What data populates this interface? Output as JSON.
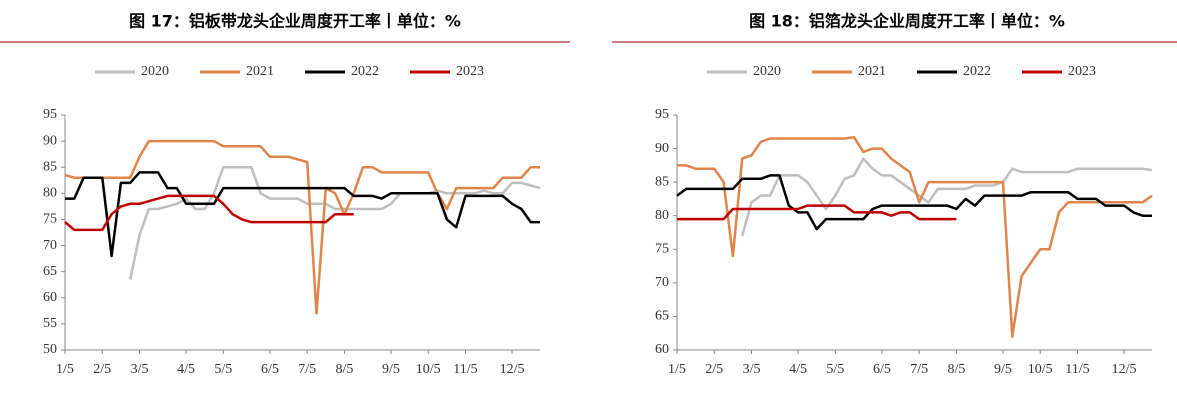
{
  "chart_data": [
    {
      "type": "line",
      "title": "图 17：铝板带龙头企业周度开工率丨单位：%",
      "categories": [
        "1/5",
        null,
        null,
        null,
        "2/5",
        null,
        null,
        null,
        "3/5",
        null,
        null,
        null,
        null,
        "4/5",
        null,
        null,
        null,
        "5/5",
        null,
        null,
        null,
        null,
        "6/5",
        null,
        null,
        null,
        "7/5",
        null,
        null,
        null,
        "8/5",
        null,
        null,
        null,
        null,
        "9/5",
        null,
        null,
        null,
        "10/5",
        null,
        null,
        null,
        "11/5",
        null,
        null,
        null,
        null,
        "12/5",
        null,
        null,
        null
      ],
      "ylim": [
        50,
        95
      ],
      "yticks": [
        50,
        55,
        60,
        65,
        70,
        75,
        80,
        85,
        90,
        95
      ],
      "series": [
        {
          "name": "2020",
          "color": "#bfbfbf",
          "values": [
            null,
            null,
            null,
            null,
            null,
            null,
            null,
            63.5,
            72,
            77,
            77,
            77.5,
            78,
            79,
            77,
            77,
            80,
            85,
            85,
            85,
            85,
            80,
            79,
            79,
            79,
            79,
            78,
            78,
            78,
            77,
            77,
            77,
            77,
            77,
            77,
            78,
            80,
            80,
            80,
            80,
            80.5,
            80,
            80,
            80,
            80,
            80.5,
            80,
            80,
            82,
            82,
            81.5,
            81
          ]
        },
        {
          "name": "2021",
          "color": "#e0854a",
          "values": [
            83.5,
            83,
            83,
            83,
            83,
            83,
            83,
            83,
            87,
            90,
            90,
            90,
            90,
            90,
            90,
            90,
            90,
            89,
            89,
            89,
            89,
            89,
            87,
            87,
            87,
            86.5,
            86,
            57,
            81,
            80,
            76,
            80,
            85,
            85,
            84,
            84,
            84,
            84,
            84,
            84,
            80,
            77,
            81,
            81,
            81,
            81,
            81,
            83,
            83,
            83,
            85,
            85
          ]
        },
        {
          "name": "2022",
          "color": "#000000",
          "values": [
            79,
            79,
            83,
            83,
            83,
            68,
            82,
            82,
            84,
            84,
            84,
            81,
            81,
            78,
            78,
            78,
            78,
            81,
            81,
            81,
            81,
            81,
            81,
            81,
            81,
            81,
            81,
            81,
            81,
            81,
            81,
            79.5,
            79.5,
            79.5,
            79,
            80,
            80,
            80,
            80,
            80,
            80,
            75,
            73.5,
            79.5,
            79.5,
            79.5,
            79.5,
            79.5,
            78,
            77,
            74.5,
            74.5
          ]
        },
        {
          "name": "2023",
          "color": "#c00000",
          "values": [
            74.5,
            73,
            73,
            73,
            73,
            76,
            77.5,
            78,
            78,
            78.5,
            79,
            79.5,
            79.5,
            79.5,
            79.5,
            79.5,
            79.5,
            78,
            76,
            75,
            74.5,
            74.5,
            74.5,
            74.5,
            74.5,
            74.5,
            74.5,
            74.5,
            74.5,
            76,
            76,
            76,
            null,
            null,
            null,
            null,
            null,
            null,
            null,
            null,
            null,
            null,
            null,
            null,
            null,
            null,
            null,
            null,
            null,
            null,
            null,
            null
          ]
        }
      ]
    },
    {
      "type": "line",
      "title": "图 18：铝箔龙头企业周度开工率丨单位：%",
      "categories": [
        "1/5",
        null,
        null,
        null,
        "2/5",
        null,
        null,
        null,
        "3/5",
        null,
        null,
        null,
        null,
        "4/5",
        null,
        null,
        null,
        "5/5",
        null,
        null,
        null,
        null,
        "6/5",
        null,
        null,
        null,
        "7/5",
        null,
        null,
        null,
        "8/5",
        null,
        null,
        null,
        null,
        "9/5",
        null,
        null,
        null,
        "10/5",
        null,
        null,
        null,
        "11/5",
        null,
        null,
        null,
        null,
        "12/5",
        null,
        null,
        null
      ],
      "ylim": [
        60,
        95
      ],
      "yticks": [
        60,
        65,
        70,
        75,
        80,
        85,
        90,
        95
      ],
      "series": [
        {
          "name": "2020",
          "color": "#bfbfbf",
          "values": [
            null,
            null,
            null,
            null,
            null,
            null,
            null,
            77,
            82,
            83,
            83,
            86,
            86,
            86,
            85,
            83,
            81,
            83,
            85.5,
            86,
            88.5,
            87,
            86,
            86,
            85,
            84,
            83,
            82,
            84,
            84,
            84,
            84,
            84.5,
            84.5,
            84.5,
            85,
            87,
            86.5,
            86.5,
            86.5,
            86.5,
            86.5,
            86.5,
            87,
            87,
            87,
            87,
            87,
            87,
            87,
            87,
            86.8
          ]
        },
        {
          "name": "2021",
          "color": "#e0854a",
          "values": [
            87.5,
            87.5,
            87,
            87,
            87,
            85,
            74,
            88.5,
            89,
            91,
            91.5,
            91.5,
            91.5,
            91.5,
            91.5,
            91.5,
            91.5,
            91.5,
            91.5,
            91.7,
            89.5,
            90,
            90,
            88.5,
            87.5,
            86.5,
            82,
            85,
            85,
            85,
            85,
            85,
            85,
            85,
            85,
            85,
            62,
            71,
            73,
            75,
            75,
            80.5,
            82,
            82,
            82,
            82,
            82,
            82,
            82,
            82,
            82,
            83
          ]
        },
        {
          "name": "2022",
          "color": "#000000",
          "values": [
            83,
            84,
            84,
            84,
            84,
            84,
            84,
            85.5,
            85.5,
            85.5,
            86,
            86,
            81.5,
            80.5,
            80.5,
            78,
            79.5,
            79.5,
            79.5,
            79.5,
            79.5,
            81,
            81.5,
            81.5,
            81.5,
            81.5,
            81.5,
            81.5,
            81.5,
            81.5,
            81,
            82.5,
            81.5,
            83,
            83,
            83,
            83,
            83,
            83.5,
            83.5,
            83.5,
            83.5,
            83.5,
            82.5,
            82.5,
            82.5,
            81.5,
            81.5,
            81.5,
            80.5,
            80,
            80
          ]
        },
        {
          "name": "2023",
          "color": "#c00000",
          "values": [
            79.5,
            79.5,
            79.5,
            79.5,
            79.5,
            79.5,
            81,
            81,
            81,
            81,
            81,
            81,
            81,
            81,
            81.5,
            81.5,
            81.5,
            81.5,
            81.5,
            80.5,
            80.5,
            80.5,
            80.5,
            80,
            80.5,
            80.5,
            79.5,
            79.5,
            79.5,
            79.5,
            79.5,
            null,
            null,
            null,
            null,
            null,
            null,
            null,
            null,
            null,
            null,
            null,
            null,
            null,
            null,
            null,
            null,
            null,
            null,
            null,
            null,
            null
          ]
        }
      ]
    }
  ]
}
